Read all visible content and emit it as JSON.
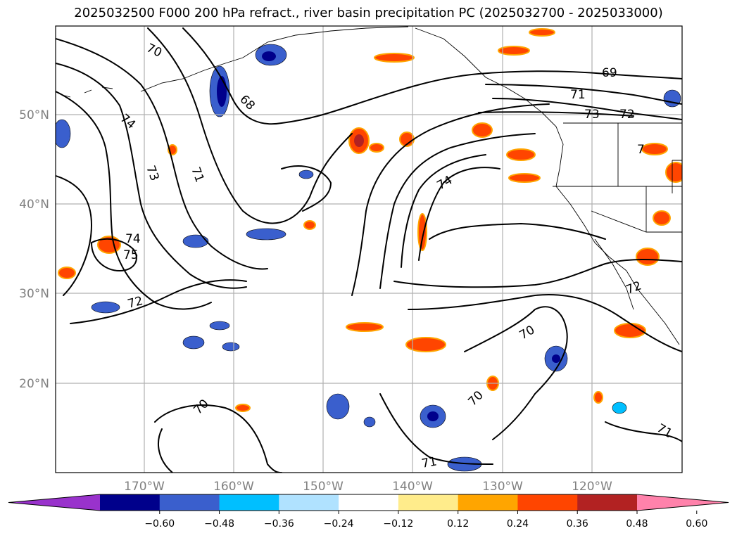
{
  "title": "2025032500 F000 200 hPa refract., river basin precipitation PC (2025032700 - 2025033000)",
  "map": {
    "lat_labels": [
      "50°N",
      "40°N",
      "30°N",
      "20°N"
    ],
    "lon_labels": [
      "170°W",
      "160°W",
      "150°W",
      "140°W",
      "130°W",
      "120°W"
    ],
    "contour_labels": [
      "70",
      "68",
      "69",
      "71",
      "73",
      "72",
      "74",
      "73",
      "71",
      "74",
      "75",
      "72",
      "74",
      "70",
      "72",
      "70",
      "70",
      "71",
      "71",
      "7"
    ]
  },
  "colorbar": {
    "colors": [
      "#9932cc",
      "#00008b",
      "#3a5fcd",
      "#00bfff",
      "#b0e2ff",
      "#ffffff",
      "#ffec8b",
      "#ffa500",
      "#ff4500",
      "#b22222",
      "#ff82ab"
    ],
    "ticks": [
      "−0.60",
      "−0.48",
      "−0.36",
      "−0.24",
      "−0.12",
      "0.12",
      "0.24",
      "0.36",
      "0.48",
      "0.60"
    ]
  }
}
